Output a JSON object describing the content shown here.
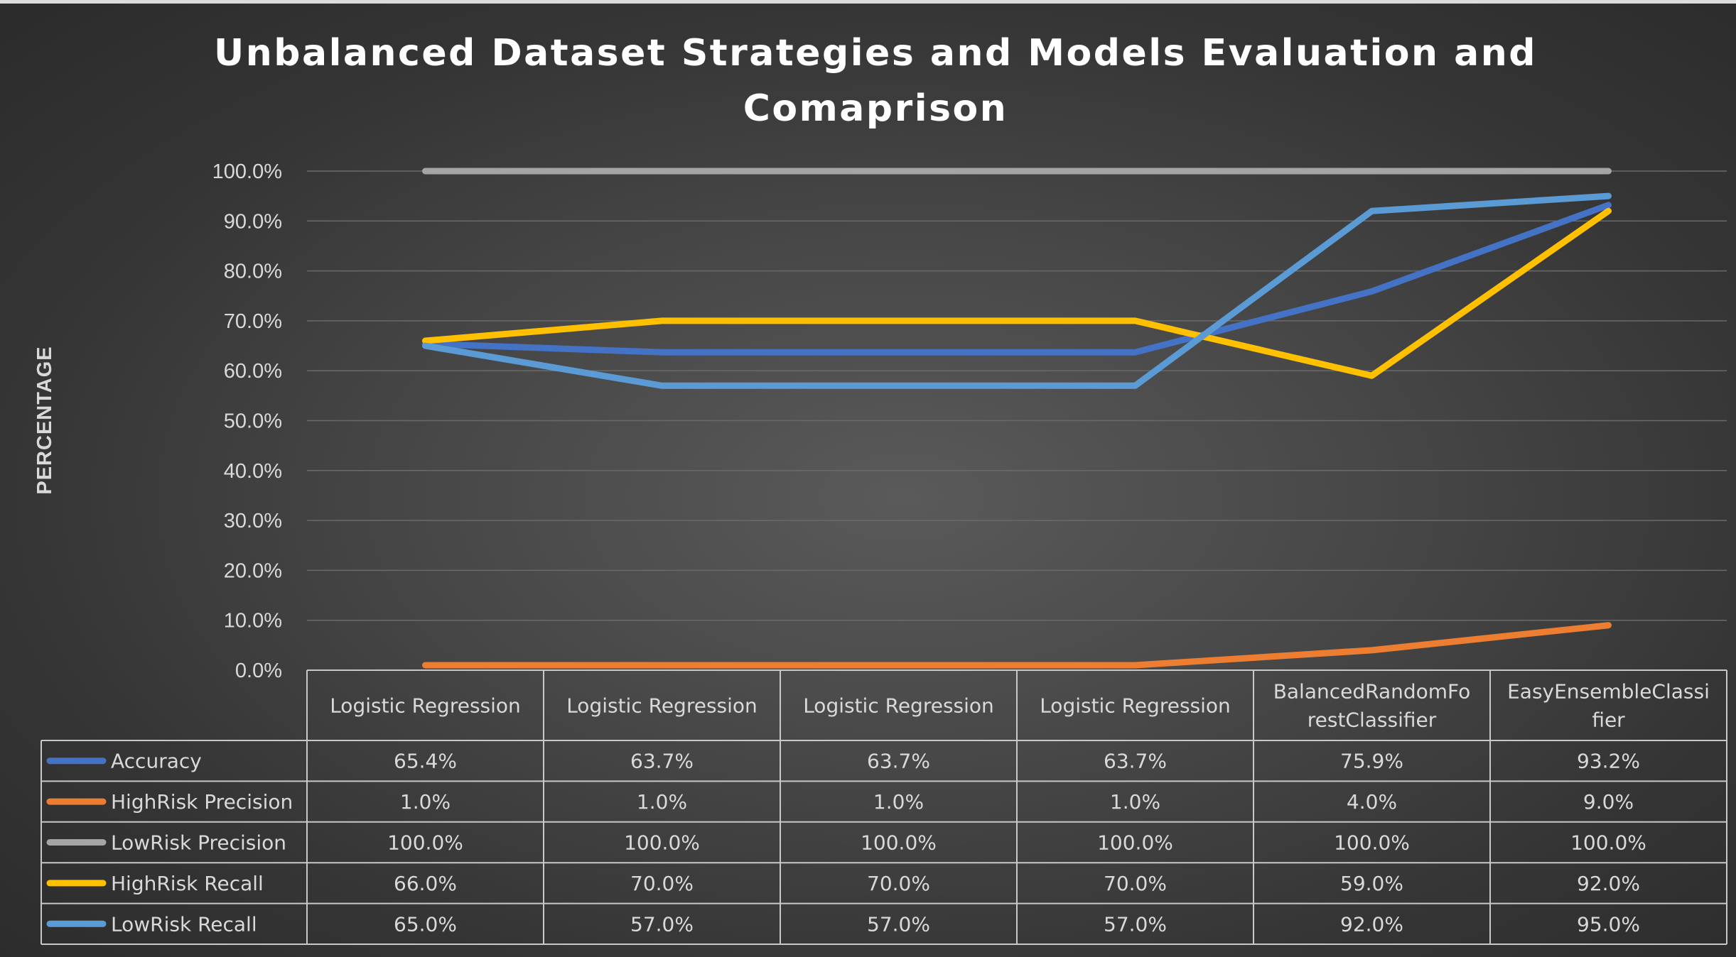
{
  "chart_data": {
    "type": "line",
    "title": "Unbalanced Dataset Strategies and Models Evaluation and Comaprison",
    "title_lines": [
      "Unbalanced Dataset Strategies and Models Evaluation and",
      "Comaprison"
    ],
    "ylabel": "PERCENTAGE",
    "xlabel": "",
    "ylim": [
      0,
      100
    ],
    "y_ticks": [
      "0.0%",
      "10.0%",
      "20.0%",
      "30.0%",
      "40.0%",
      "50.0%",
      "60.0%",
      "70.0%",
      "80.0%",
      "90.0%",
      "100.0%"
    ],
    "y_tick_values": [
      0,
      10,
      20,
      30,
      40,
      50,
      60,
      70,
      80,
      90,
      100
    ],
    "grid": true,
    "legend_placement": "data-table-left",
    "categories": [
      "Logistic Regression",
      "Logistic Regression",
      "Logistic Regression",
      "Logistic Regression",
      "BalancedRandomForestClassifier",
      "EasyEnsembleClassifier"
    ],
    "category_lines": [
      [
        "Logistic Regression"
      ],
      [
        "Logistic Regression"
      ],
      [
        "Logistic Regression"
      ],
      [
        "Logistic Regression"
      ],
      [
        "BalancedRandomFo",
        "restClassifier"
      ],
      [
        "EasyEnsembleClassi",
        "fier"
      ]
    ],
    "series": [
      {
        "name": "Accuracy",
        "color": "#4472c4",
        "values": [
          65.4,
          63.7,
          63.7,
          63.7,
          75.9,
          93.2
        ],
        "labels": [
          "65.4%",
          "63.7%",
          "63.7%",
          "63.7%",
          "75.9%",
          "93.2%"
        ]
      },
      {
        "name": "HighRisk Precision",
        "color": "#ed7d31",
        "values": [
          1.0,
          1.0,
          1.0,
          1.0,
          4.0,
          9.0
        ],
        "labels": [
          "1.0%",
          "1.0%",
          "1.0%",
          "1.0%",
          "4.0%",
          "9.0%"
        ]
      },
      {
        "name": "LowRisk Precision",
        "color": "#a5a5a5",
        "values": [
          100.0,
          100.0,
          100.0,
          100.0,
          100.0,
          100.0
        ],
        "labels": [
          "100.0%",
          "100.0%",
          "100.0%",
          "100.0%",
          "100.0%",
          "100.0%"
        ]
      },
      {
        "name": "HighRisk Recall",
        "color": "#ffc000",
        "values": [
          66.0,
          70.0,
          70.0,
          70.0,
          59.0,
          92.0
        ],
        "labels": [
          "66.0%",
          "70.0%",
          "70.0%",
          "70.0%",
          "59.0%",
          "92.0%"
        ]
      },
      {
        "name": "LowRisk Recall",
        "color": "#5b9bd5",
        "values": [
          65.0,
          57.0,
          57.0,
          57.0,
          92.0,
          95.0
        ],
        "labels": [
          "65.0%",
          "57.0%",
          "57.0%",
          "57.0%",
          "92.0%",
          "95.0%"
        ]
      }
    ]
  }
}
